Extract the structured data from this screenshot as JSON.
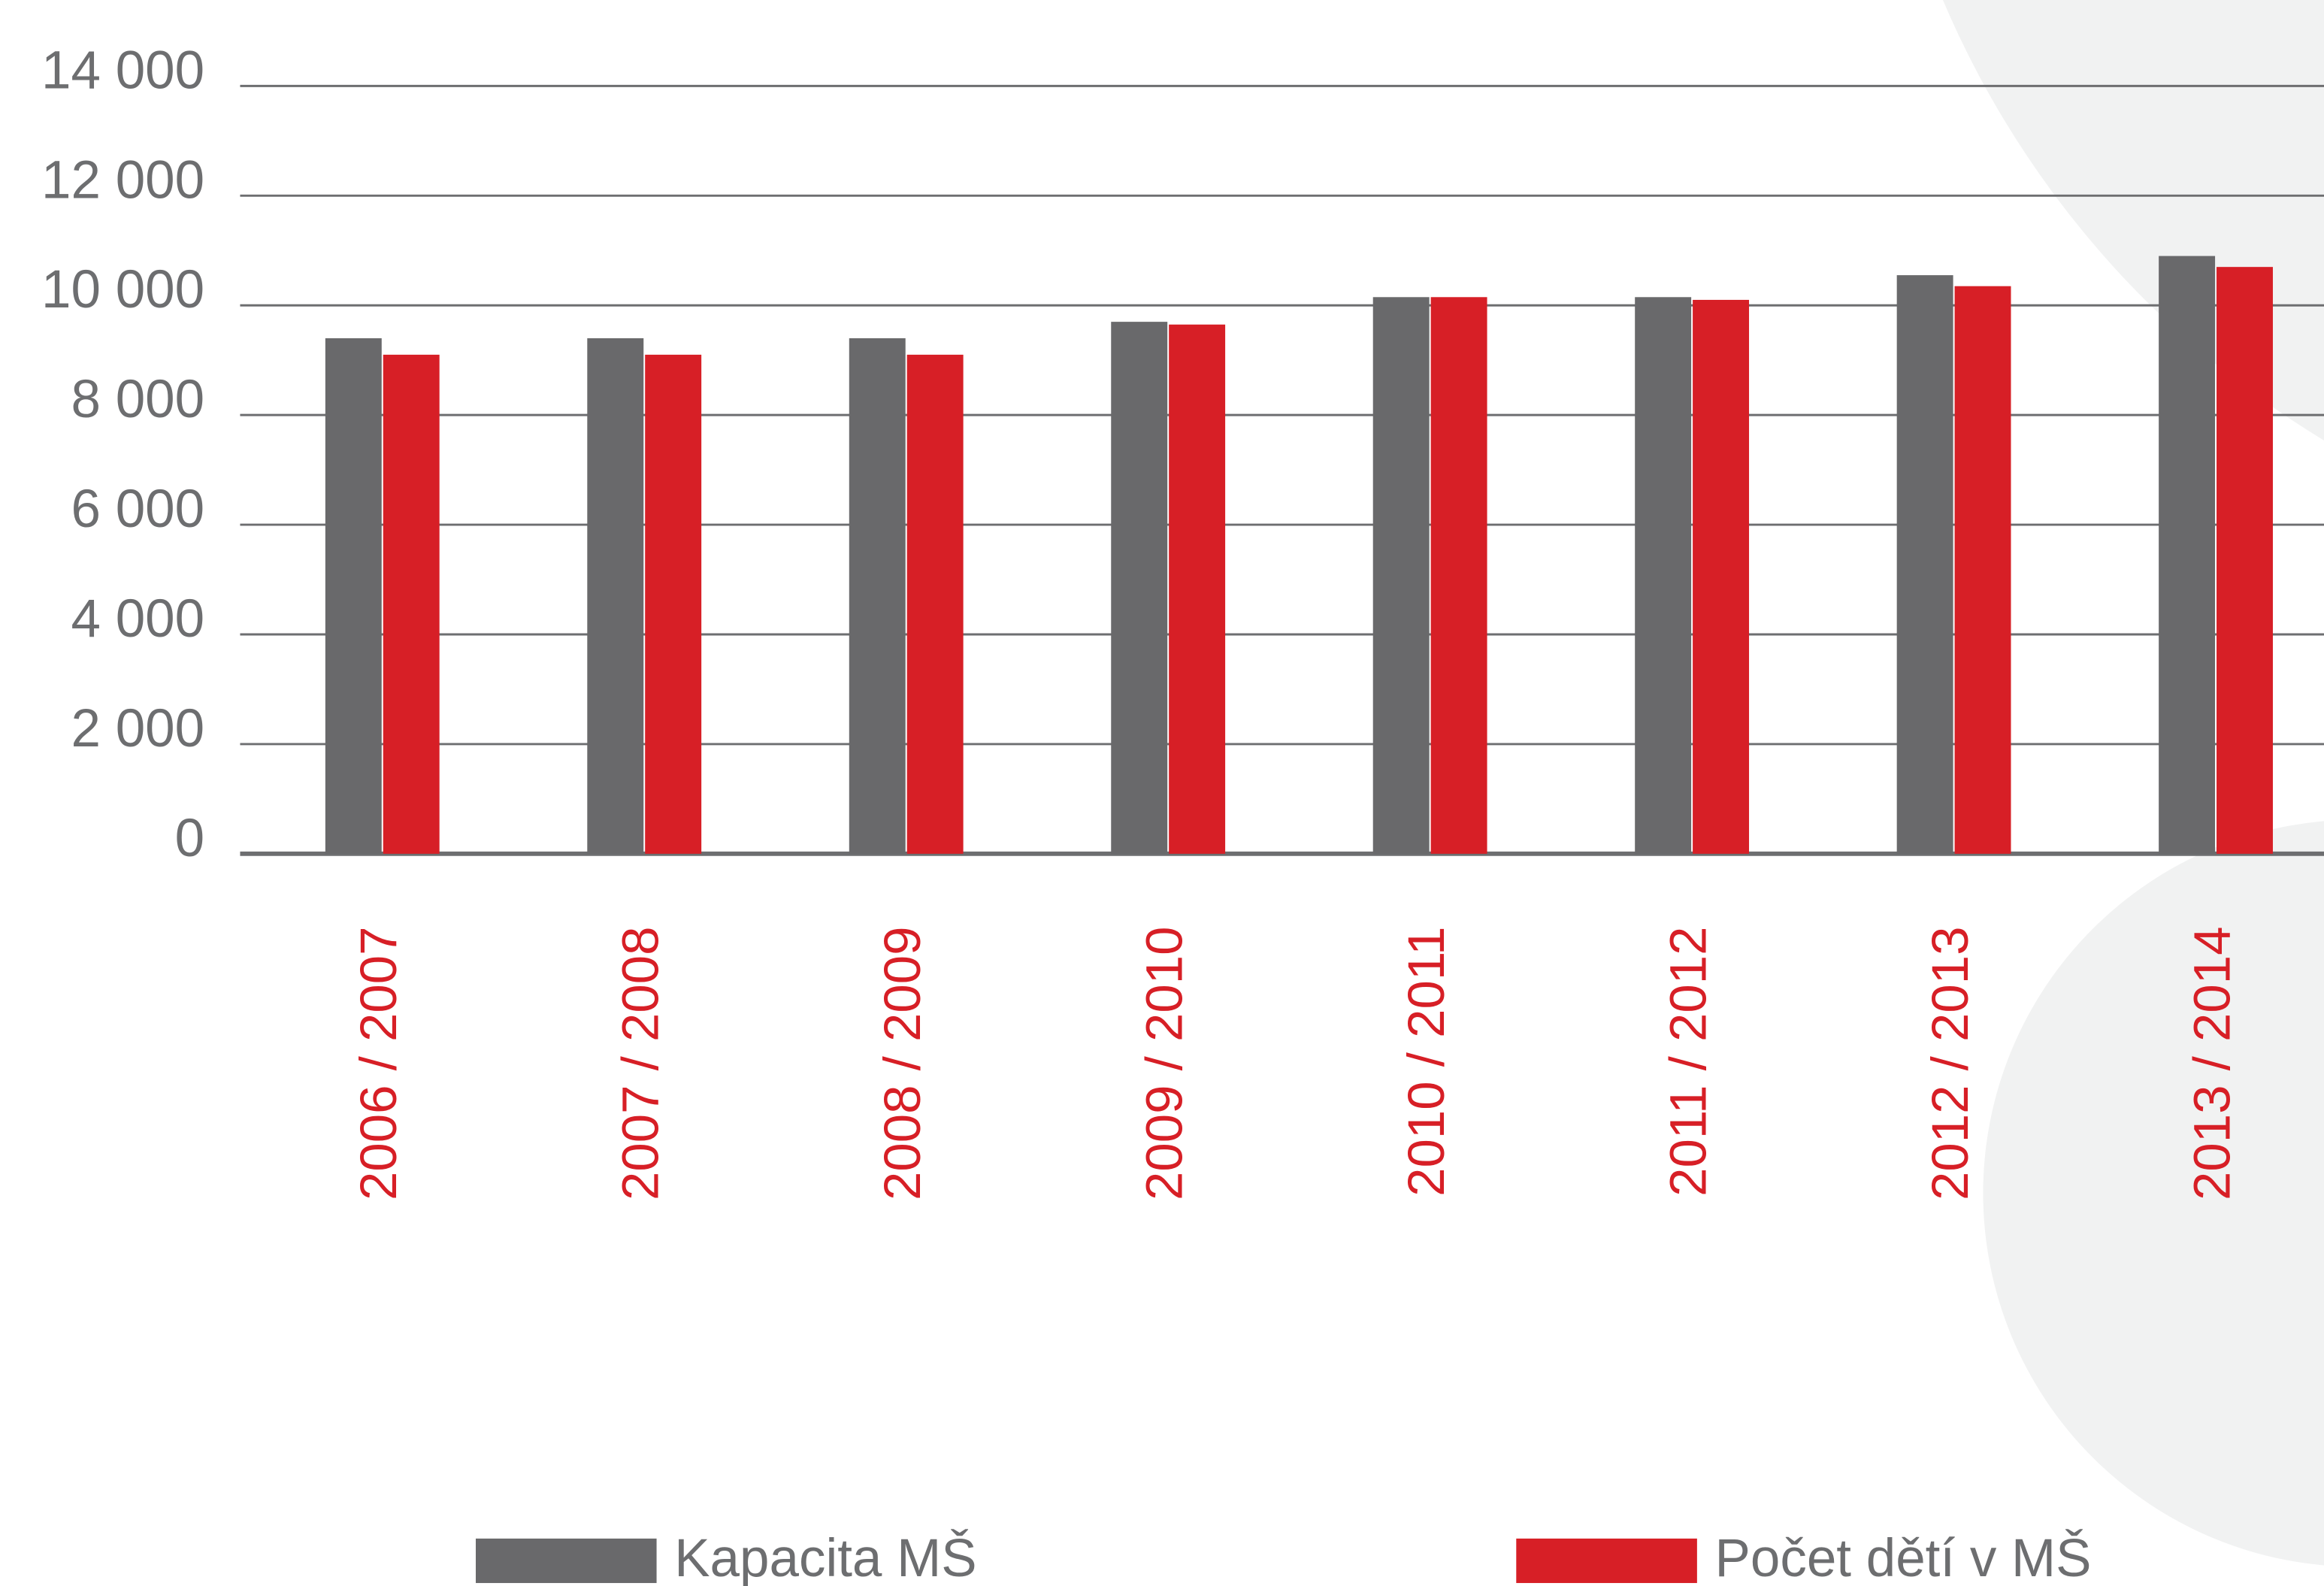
{
  "chart_data": {
    "type": "bar",
    "categories": [
      "2006 / 2007",
      "2007 / 2008",
      "2008 / 2009",
      "2009 / 2010",
      "2010 / 2011",
      "2011 / 2012",
      "2012 / 2013",
      "2013 / 2014"
    ],
    "series": [
      {
        "name": "Kapacita MŠ",
        "color": "#69696b",
        "values": [
          9400,
          9400,
          9400,
          9700,
          10150,
          10150,
          10550,
          10900
        ]
      },
      {
        "name": "Počet dětí v MŠ",
        "color": "#d71f26",
        "values": [
          9100,
          9100,
          9100,
          9650,
          10150,
          10100,
          10350,
          10700
        ]
      }
    ],
    "ylim": [
      0,
      14000
    ],
    "yticks": [
      0,
      {
        "value": 2000,
        "label": "2 000"
      },
      {
        "value": 4000,
        "label": "4 000"
      },
      {
        "value": 6000,
        "label": "6 000"
      },
      {
        "value": 8000,
        "label": "8 000"
      },
      {
        "value": 10000,
        "label": "10 000"
      },
      {
        "value": 12000,
        "label": "12 000"
      },
      {
        "value": 14000,
        "label": "14 000"
      }
    ],
    "grid": true
  }
}
